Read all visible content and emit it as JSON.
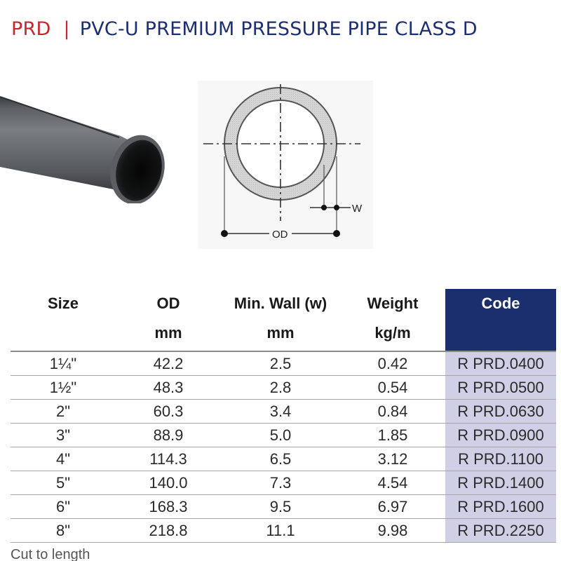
{
  "header": {
    "brand": "PRD",
    "separator": "|",
    "product": "PVC-U PREMIUM PRESSURE PIPE CLASS D"
  },
  "diagram": {
    "wall_label": "W",
    "od_label": "OD"
  },
  "table": {
    "headers": [
      {
        "title": "Size",
        "unit": ""
      },
      {
        "title": "OD",
        "unit": "mm"
      },
      {
        "title": "Min. Wall (w)",
        "unit": "mm"
      },
      {
        "title": "Weight",
        "unit": "kg/m"
      },
      {
        "title": "Code",
        "unit": ""
      }
    ],
    "rows": [
      {
        "size": "1¼\"",
        "od": "42.2",
        "wall": "2.5",
        "weight": "0.42",
        "code": "R PRD.0400"
      },
      {
        "size": "1½\"",
        "od": "48.3",
        "wall": "2.8",
        "weight": "0.54",
        "code": "R PRD.0500"
      },
      {
        "size": "2\"",
        "od": "60.3",
        "wall": "3.4",
        "weight": "0.84",
        "code": "R PRD.0630"
      },
      {
        "size": "3\"",
        "od": "88.9",
        "wall": "5.0",
        "weight": "1.85",
        "code": "R PRD.0900"
      },
      {
        "size": "4\"",
        "od": "114.3",
        "wall": "6.5",
        "weight": "3.12",
        "code": "R PRD.1100"
      },
      {
        "size": "5\"",
        "od": "140.0",
        "wall": "7.3",
        "weight": "4.54",
        "code": "R PRD.1400"
      },
      {
        "size": "6\"",
        "od": "168.3",
        "wall": "9.5",
        "weight": "6.97",
        "code": "R PRD.1600"
      },
      {
        "size": "8\"",
        "od": "218.8",
        "wall": "11.1",
        "weight": "9.98",
        "code": "R PRD.2250"
      }
    ]
  },
  "footer_fragment": "Cut to length",
  "colors": {
    "brand_red": "#c8262f",
    "navy": "#1b2e6d",
    "code_column": "#cfd0e6"
  },
  "icons": {
    "pipe_photo": "pvc-pipe-photo",
    "cross_section": "pipe-cross-section-diagram"
  }
}
